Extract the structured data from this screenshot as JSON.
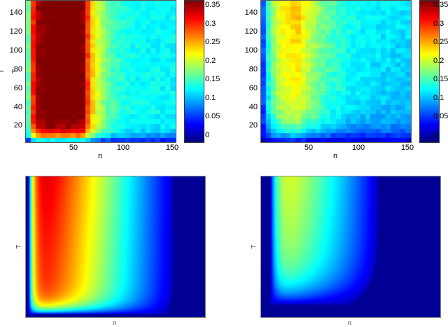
{
  "chart_data": [
    {
      "type": "heatmap",
      "id": "top-left",
      "title": "",
      "xlabel": "n",
      "ylabel": "T",
      "xlim": [
        1,
        152
      ],
      "ylim": [
        1,
        152
      ],
      "xticks": [
        50,
        100,
        150
      ],
      "yticks": [
        20,
        40,
        60,
        80,
        100,
        120,
        140
      ],
      "grid": false,
      "colormap": "jet",
      "clim": [
        -0.02,
        0.36
      ],
      "colorbar": {
        "ticks": [
          0,
          0.05,
          0.1,
          0.15,
          0.2,
          0.25,
          0.3,
          0.35
        ],
        "labels": [
          "0",
          "0.05",
          "0.1",
          "0.15",
          "0.2",
          "0.25",
          "0.3",
          "0.35"
        ]
      },
      "description": "Empirical grid ~30x30; peak ~0.35 for n 15-55 and T > 30; drops to ~0.2 near n 70, ~0.12 at n 150; low values at T < 10 and n < 8",
      "peak_value": 0.35,
      "peak_region": {
        "n": [
          15,
          55
        ],
        "T": [
          30,
          150
        ]
      }
    },
    {
      "type": "heatmap",
      "id": "top-right",
      "title": "",
      "xlabel": "n",
      "ylabel": "T",
      "xlim": [
        1,
        152
      ],
      "ylim": [
        1,
        152
      ],
      "xticks": [
        50,
        100,
        150
      ],
      "yticks": [
        20,
        40,
        60,
        80,
        100,
        120,
        140
      ],
      "grid": false,
      "colormap": "jet",
      "clim": [
        -0.02,
        0.36
      ],
      "colorbar": {
        "ticks": [
          0,
          0.05,
          0.1,
          0.15,
          0.2,
          0.25,
          0.3,
          0.35
        ],
        "labels": [
          "0",
          "0.05",
          "0.1",
          "0.15",
          "0.2",
          "0.25",
          "0.3",
          "0.35"
        ]
      },
      "description": "Empirical grid ~30x30; peak ~0.24 near n 30-45, T 100-150; ~0.1 at n 150; near 0 for T < 10 and n < 8",
      "peak_value": 0.24,
      "peak_region": {
        "n": [
          25,
          50
        ],
        "T": [
          90,
          150
        ]
      }
    },
    {
      "type": "heatmap",
      "id": "bottom-left",
      "title": "",
      "xlabel": "n",
      "ylabel": "T",
      "xticks": [],
      "yticks": [],
      "grid": false,
      "colormap": "jet",
      "description": "Smooth theoretical surface; maximum (dark red) near n ~ 0.2 of width at top; contour boundary at ~0.82 of width; zero region to right",
      "peak_value": 0.35,
      "zero_contour_x_frac": 0.82
    },
    {
      "type": "heatmap",
      "id": "bottom-right",
      "title": "",
      "xlabel": "n",
      "ylabel": "T",
      "xticks": [],
      "yticks": [],
      "grid": false,
      "colormap": "jet",
      "description": "Smooth theoretical surface; maximum (orange-yellow ~0.25) near n ~ 0.23 of width at top; zero contour at ~0.65 of width; zero region to right and bottom",
      "peak_value": 0.25,
      "zero_contour_x_frac": 0.65
    }
  ],
  "panels": {
    "top_left": {
      "xlabel": "n",
      "ylabel": "T",
      "xticks": [
        "50",
        "100",
        "150"
      ],
      "yticks": [
        "20",
        "40",
        "60",
        "80",
        "100",
        "120",
        "140"
      ],
      "cbticks": [
        "0",
        "0.05",
        "0.1",
        "0.15",
        "0.2",
        "0.25",
        "0.3",
        "0.35"
      ]
    },
    "top_right": {
      "xlabel": "n",
      "ylabel": "T",
      "xticks": [
        "50",
        "100",
        "150"
      ],
      "yticks": [
        "20",
        "40",
        "60",
        "80",
        "100",
        "120",
        "140"
      ],
      "cbticks": [
        "0",
        "0.05",
        "0.1",
        "0.15",
        "0.2",
        "0.25",
        "0.3",
        "0.35"
      ]
    },
    "bottom_left": {
      "xlabel": "n",
      "ylabel": "T"
    },
    "bottom_right": {
      "xlabel": "n",
      "ylabel": "T"
    }
  }
}
